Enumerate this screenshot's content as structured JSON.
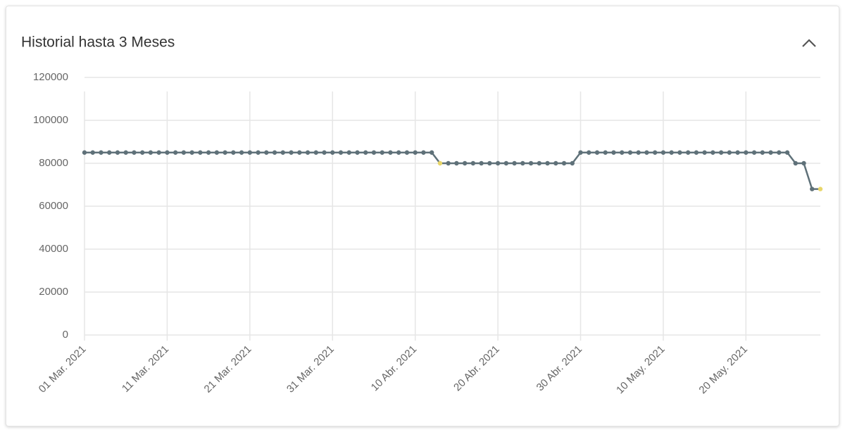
{
  "chart_data": {
    "type": "line",
    "title": "Historial hasta 3 Meses",
    "x": [
      "2021-03-01",
      "2021-03-02",
      "2021-03-03",
      "2021-03-04",
      "2021-03-05",
      "2021-03-06",
      "2021-03-07",
      "2021-03-08",
      "2021-03-09",
      "2021-03-10",
      "2021-03-11",
      "2021-03-12",
      "2021-03-13",
      "2021-03-14",
      "2021-03-15",
      "2021-03-16",
      "2021-03-17",
      "2021-03-18",
      "2021-03-19",
      "2021-03-20",
      "2021-03-21",
      "2021-03-22",
      "2021-03-23",
      "2021-03-24",
      "2021-03-25",
      "2021-03-26",
      "2021-03-27",
      "2021-03-28",
      "2021-03-29",
      "2021-03-30",
      "2021-03-31",
      "2021-04-01",
      "2021-04-02",
      "2021-04-03",
      "2021-04-04",
      "2021-04-05",
      "2021-04-06",
      "2021-04-07",
      "2021-04-08",
      "2021-04-09",
      "2021-04-10",
      "2021-04-11",
      "2021-04-12",
      "2021-04-13",
      "2021-04-14",
      "2021-04-15",
      "2021-04-16",
      "2021-04-17",
      "2021-04-18",
      "2021-04-19",
      "2021-04-20",
      "2021-04-21",
      "2021-04-22",
      "2021-04-23",
      "2021-04-24",
      "2021-04-25",
      "2021-04-26",
      "2021-04-27",
      "2021-04-28",
      "2021-04-29",
      "2021-04-30",
      "2021-05-01",
      "2021-05-02",
      "2021-05-03",
      "2021-05-04",
      "2021-05-05",
      "2021-05-06",
      "2021-05-07",
      "2021-05-08",
      "2021-05-09",
      "2021-05-10",
      "2021-05-11",
      "2021-05-12",
      "2021-05-13",
      "2021-05-14",
      "2021-05-15",
      "2021-05-16",
      "2021-05-17",
      "2021-05-18",
      "2021-05-19",
      "2021-05-20",
      "2021-05-21",
      "2021-05-22",
      "2021-05-23",
      "2021-05-24",
      "2021-05-25",
      "2021-05-26",
      "2021-05-27",
      "2021-05-28",
      "2021-05-29"
    ],
    "values": [
      85000,
      85000,
      85000,
      85000,
      85000,
      85000,
      85000,
      85000,
      85000,
      85000,
      85000,
      85000,
      85000,
      85000,
      85000,
      85000,
      85000,
      85000,
      85000,
      85000,
      85000,
      85000,
      85000,
      85000,
      85000,
      85000,
      85000,
      85000,
      85000,
      85000,
      85000,
      85000,
      85000,
      85000,
      85000,
      85000,
      85000,
      85000,
      85000,
      85000,
      85000,
      85000,
      85000,
      80000,
      80000,
      80000,
      80000,
      80000,
      80000,
      80000,
      80000,
      80000,
      80000,
      80000,
      80000,
      80000,
      80000,
      80000,
      80000,
      80000,
      85000,
      85000,
      85000,
      85000,
      85000,
      85000,
      85000,
      85000,
      85000,
      85000,
      85000,
      85000,
      85000,
      85000,
      85000,
      85000,
      85000,
      85000,
      85000,
      85000,
      85000,
      85000,
      85000,
      85000,
      85000,
      85000,
      80000,
      80000,
      68000,
      68000
    ],
    "color": "#5f7179",
    "highlight_points": [
      43,
      89
    ],
    "highlight_color": "#e8d66a",
    "xlim": [
      "2021-03-01",
      "2021-05-29"
    ],
    "xticks": [
      {
        "value": "2021-03-01",
        "label": "01 Mar. 2021"
      },
      {
        "value": "2021-03-11",
        "label": "11 Mar. 2021"
      },
      {
        "value": "2021-03-21",
        "label": "21 Mar. 2021"
      },
      {
        "value": "2021-03-31",
        "label": "31 Mar. 2021"
      },
      {
        "value": "2021-04-10",
        "label": "10 Abr. 2021"
      },
      {
        "value": "2021-04-20",
        "label": "20 Abr. 2021"
      },
      {
        "value": "2021-04-30",
        "label": "30 Abr. 2021"
      },
      {
        "value": "2021-05-10",
        "label": "10 May. 2021"
      },
      {
        "value": "2021-05-20",
        "label": "20 May. 2021"
      }
    ],
    "ylim": [
      0,
      120000
    ],
    "yticks": [
      0,
      20000,
      40000,
      60000,
      80000,
      100000,
      120000
    ],
    "grid": true
  }
}
